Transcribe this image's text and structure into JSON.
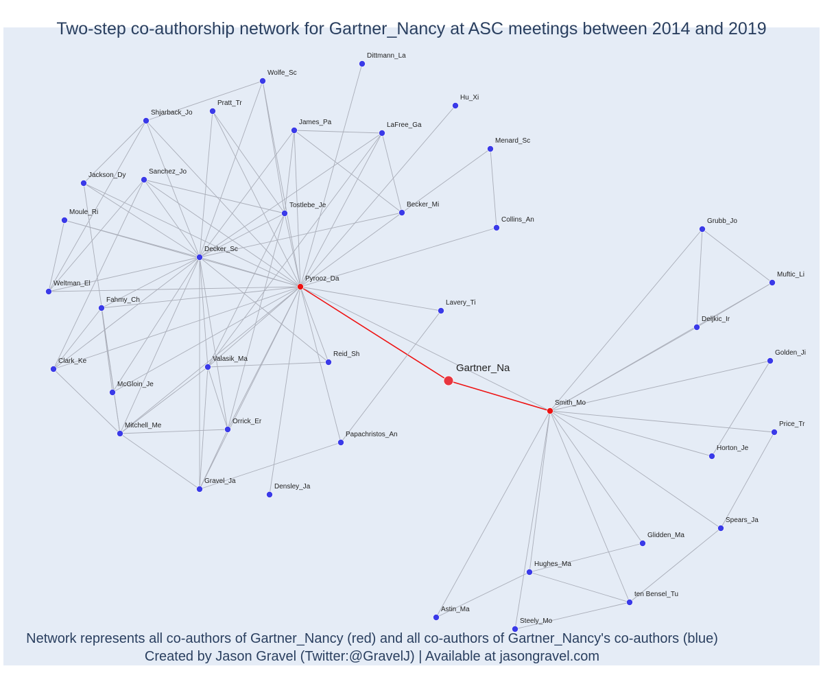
{
  "title": "Two-step co-authorship network for Gartner_Nancy at ASC meetings between 2014 and 2019",
  "caption": {
    "line1": "Network represents all co-authors of Gartner_Nancy (red) and all co-authors of Gartner_Nancy's co-authors (blue)",
    "line2": "Created by Jason Gravel (Twitter:@GravelJ) | Available at jasongravel.com"
  },
  "colors": {
    "ego": "#e8353f",
    "coauthor": "#ee1111",
    "second_step": "#3a3ae8",
    "edge": "#a9adb8",
    "ego_edge": "#ee1111"
  },
  "nodes": [
    {
      "id": "Gartner_Na",
      "type": "ego"
    },
    {
      "id": "Pyrooz_Da",
      "type": "coauthor"
    },
    {
      "id": "Smith_Mo",
      "type": "coauthor"
    },
    {
      "id": "Dittmann_La",
      "type": "second"
    },
    {
      "id": "Wolfe_Sc",
      "type": "second"
    },
    {
      "id": "Hu_Xi",
      "type": "second"
    },
    {
      "id": "Pratt_Tr",
      "type": "second"
    },
    {
      "id": "Shjarback_Jo",
      "type": "second"
    },
    {
      "id": "James_Pa",
      "type": "second"
    },
    {
      "id": "LaFree_Ga",
      "type": "second"
    },
    {
      "id": "Menard_Sc",
      "type": "second"
    },
    {
      "id": "Sanchez_Jo",
      "type": "second"
    },
    {
      "id": "Jackson_Dy",
      "type": "second"
    },
    {
      "id": "Tostlebe_Je",
      "type": "second"
    },
    {
      "id": "Becker_Mi",
      "type": "second"
    },
    {
      "id": "Moule_Ri",
      "type": "second"
    },
    {
      "id": "Collins_An",
      "type": "second"
    },
    {
      "id": "Decker_Sc",
      "type": "second"
    },
    {
      "id": "Weltman_El",
      "type": "second"
    },
    {
      "id": "Fahmy_Ch",
      "type": "second"
    },
    {
      "id": "Lavery_Ti",
      "type": "second"
    },
    {
      "id": "Clark_Ke",
      "type": "second"
    },
    {
      "id": "Reid_Sh",
      "type": "second"
    },
    {
      "id": "Valasik_Ma",
      "type": "second"
    },
    {
      "id": "McGloin_Je",
      "type": "second"
    },
    {
      "id": "Mitchell_Me",
      "type": "second"
    },
    {
      "id": "Orrick_Er",
      "type": "second"
    },
    {
      "id": "Papachristos_An",
      "type": "second"
    },
    {
      "id": "Gravel_Ja",
      "type": "second"
    },
    {
      "id": "Densley_Ja",
      "type": "second"
    },
    {
      "id": "Grubb_Jo",
      "type": "second"
    },
    {
      "id": "Muftic_Li",
      "type": "second"
    },
    {
      "id": "Deljkic_Ir",
      "type": "second"
    },
    {
      "id": "Golden_Ji",
      "type": "second"
    },
    {
      "id": "Price_Tr",
      "type": "second"
    },
    {
      "id": "Horton_Je",
      "type": "second"
    },
    {
      "id": "Spears_Ja",
      "type": "second"
    },
    {
      "id": "Glidden_Ma",
      "type": "second"
    },
    {
      "id": "Hughes_Ma",
      "type": "second"
    },
    {
      "id": "ten Bensel_Tu",
      "type": "second"
    },
    {
      "id": "Astin_Ma",
      "type": "second"
    },
    {
      "id": "Steely_Mo",
      "type": "second"
    }
  ],
  "edges": [
    [
      "Gartner_Na",
      "Pyrooz_Da"
    ],
    [
      "Gartner_Na",
      "Smith_Mo"
    ],
    [
      "Pyrooz_Da",
      "Smith_Mo"
    ],
    [
      "Pyrooz_Da",
      "Dittmann_La"
    ],
    [
      "Pyrooz_Da",
      "Wolfe_Sc"
    ],
    [
      "Pyrooz_Da",
      "Hu_Xi"
    ],
    [
      "Pyrooz_Da",
      "Pratt_Tr"
    ],
    [
      "Pyrooz_Da",
      "Shjarback_Jo"
    ],
    [
      "Pyrooz_Da",
      "James_Pa"
    ],
    [
      "Pyrooz_Da",
      "LaFree_Ga"
    ],
    [
      "Pyrooz_Da",
      "Sanchez_Jo"
    ],
    [
      "Pyrooz_Da",
      "Jackson_Dy"
    ],
    [
      "Pyrooz_Da",
      "Tostlebe_Je"
    ],
    [
      "Pyrooz_Da",
      "Becker_Mi"
    ],
    [
      "Pyrooz_Da",
      "Moule_Ri"
    ],
    [
      "Pyrooz_Da",
      "Collins_An"
    ],
    [
      "Pyrooz_Da",
      "Decker_Sc"
    ],
    [
      "Pyrooz_Da",
      "Weltman_El"
    ],
    [
      "Pyrooz_Da",
      "Fahmy_Ch"
    ],
    [
      "Pyrooz_Da",
      "Lavery_Ti"
    ],
    [
      "Pyrooz_Da",
      "Clark_Ke"
    ],
    [
      "Pyrooz_Da",
      "Reid_Sh"
    ],
    [
      "Pyrooz_Da",
      "Valasik_Ma"
    ],
    [
      "Pyrooz_Da",
      "McGloin_Je"
    ],
    [
      "Pyrooz_Da",
      "Mitchell_Me"
    ],
    [
      "Pyrooz_Da",
      "Orrick_Er"
    ],
    [
      "Pyrooz_Da",
      "Papachristos_An"
    ],
    [
      "Pyrooz_Da",
      "Densley_Ja"
    ],
    [
      "Pyrooz_Da",
      "Gravel_Ja"
    ],
    [
      "Decker_Sc",
      "Wolfe_Sc"
    ],
    [
      "Decker_Sc",
      "Pratt_Tr"
    ],
    [
      "Decker_Sc",
      "Shjarback_Jo"
    ],
    [
      "Decker_Sc",
      "James_Pa"
    ],
    [
      "Decker_Sc",
      "LaFree_Ga"
    ],
    [
      "Decker_Sc",
      "Sanchez_Jo"
    ],
    [
      "Decker_Sc",
      "Jackson_Dy"
    ],
    [
      "Decker_Sc",
      "Tostlebe_Je"
    ],
    [
      "Decker_Sc",
      "Becker_Mi"
    ],
    [
      "Decker_Sc",
      "Moule_Ri"
    ],
    [
      "Decker_Sc",
      "Weltman_El"
    ],
    [
      "Decker_Sc",
      "Fahmy_Ch"
    ],
    [
      "Decker_Sc",
      "Clark_Ke"
    ],
    [
      "Decker_Sc",
      "Reid_Sh"
    ],
    [
      "Decker_Sc",
      "Valasik_Ma"
    ],
    [
      "Decker_Sc",
      "McGloin_Je"
    ],
    [
      "Decker_Sc",
      "Mitchell_Me"
    ],
    [
      "Decker_Sc",
      "Orrick_Er"
    ],
    [
      "Decker_Sc",
      "Gravel_Ja"
    ],
    [
      "Wolfe_Sc",
      "Shjarback_Jo"
    ],
    [
      "Wolfe_Sc",
      "Tostlebe_Je"
    ],
    [
      "Pratt_Tr",
      "Tostlebe_Je"
    ],
    [
      "Shjarback_Jo",
      "Weltman_El"
    ],
    [
      "Shjarback_Jo",
      "Jackson_Dy"
    ],
    [
      "James_Pa",
      "LaFree_Ga"
    ],
    [
      "James_Pa",
      "Becker_Mi"
    ],
    [
      "James_Pa",
      "Tostlebe_Je"
    ],
    [
      "LaFree_Ga",
      "Becker_Mi"
    ],
    [
      "LaFree_Ga",
      "Valasik_Ma"
    ],
    [
      "Menard_Sc",
      "Becker_Mi"
    ],
    [
      "Menard_Sc",
      "Collins_An"
    ],
    [
      "Sanchez_Jo",
      "Tostlebe_Je"
    ],
    [
      "Sanchez_Jo",
      "Clark_Ke"
    ],
    [
      "Sanchez_Jo",
      "Weltman_El"
    ],
    [
      "Jackson_Dy",
      "Mitchell_Me"
    ],
    [
      "Moule_Ri",
      "Weltman_El"
    ],
    [
      "Fahmy_Ch",
      "Clark_Ke"
    ],
    [
      "Fahmy_Ch",
      "McGloin_Je"
    ],
    [
      "Fahmy_Ch",
      "Mitchell_Me"
    ],
    [
      "Clark_Ke",
      "Mitchell_Me"
    ],
    [
      "Tostlebe_Je",
      "Valasik_Ma"
    ],
    [
      "Tostlebe_Je",
      "Orrick_Er"
    ],
    [
      "Valasik_Ma",
      "Reid_Sh"
    ],
    [
      "Valasik_Ma",
      "Mitchell_Me"
    ],
    [
      "Valasik_Ma",
      "Gravel_Ja"
    ],
    [
      "Valasik_Ma",
      "Orrick_Er"
    ],
    [
      "Mitchell_Me",
      "Orrick_Er"
    ],
    [
      "Mitchell_Me",
      "Gravel_Ja"
    ],
    [
      "Orrick_Er",
      "Gravel_Ja"
    ],
    [
      "Gravel_Ja",
      "Papachristos_An"
    ],
    [
      "Lavery_Ti",
      "Papachristos_An"
    ],
    [
      "Smith_Mo",
      "Grubb_Jo"
    ],
    [
      "Smith_Mo",
      "Muftic_Li"
    ],
    [
      "Smith_Mo",
      "Deljkic_Ir"
    ],
    [
      "Smith_Mo",
      "Golden_Ji"
    ],
    [
      "Smith_Mo",
      "Price_Tr"
    ],
    [
      "Smith_Mo",
      "Horton_Je"
    ],
    [
      "Smith_Mo",
      "Spears_Ja"
    ],
    [
      "Smith_Mo",
      "Glidden_Ma"
    ],
    [
      "Smith_Mo",
      "Hughes_Ma"
    ],
    [
      "Smith_Mo",
      "ten Bensel_Tu"
    ],
    [
      "Smith_Mo",
      "Astin_Ma"
    ],
    [
      "Smith_Mo",
      "Steely_Mo"
    ],
    [
      "Grubb_Jo",
      "Muftic_Li"
    ],
    [
      "Grubb_Jo",
      "Deljkic_Ir"
    ],
    [
      "Deljkic_Ir",
      "Muftic_Li"
    ],
    [
      "Golden_Ji",
      "Horton_Je"
    ],
    [
      "Price_Tr",
      "Spears_Ja"
    ],
    [
      "Spears_Ja",
      "ten Bensel_Tu"
    ],
    [
      "Glidden_Ma",
      "Hughes_Ma"
    ],
    [
      "Hughes_Ma",
      "ten Bensel_Tu"
    ],
    [
      "Hughes_Ma",
      "Astin_Ma"
    ],
    [
      "ten Bensel_Tu",
      "Steely_Mo"
    ]
  ]
}
